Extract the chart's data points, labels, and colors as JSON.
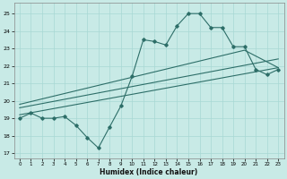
{
  "xlabel": "Humidex (Indice chaleur)",
  "bg_color": "#c8eae6",
  "grid_color": "#a8d8d4",
  "line_color": "#2d6e68",
  "x_ticks": [
    0,
    1,
    2,
    3,
    4,
    5,
    6,
    7,
    8,
    9,
    10,
    11,
    12,
    13,
    14,
    15,
    16,
    17,
    18,
    19,
    20,
    21,
    22,
    23
  ],
  "y_ticks": [
    17,
    18,
    19,
    20,
    21,
    22,
    23,
    24,
    25
  ],
  "xlim": [
    -0.5,
    23.5
  ],
  "ylim": [
    16.7,
    25.6
  ],
  "series1_x": [
    0,
    1,
    2,
    3,
    4,
    5,
    6,
    7,
    8,
    9,
    10,
    11,
    12,
    13,
    14,
    15,
    16,
    17,
    18,
    19,
    20,
    21,
    22,
    23
  ],
  "series1_y": [
    19.0,
    19.3,
    19.0,
    19.0,
    19.1,
    18.6,
    17.9,
    17.3,
    18.5,
    19.7,
    21.4,
    23.5,
    23.4,
    23.2,
    24.3,
    25.0,
    25.0,
    24.2,
    24.2,
    23.1,
    23.1,
    21.8,
    21.5,
    21.8
  ],
  "line2_x": [
    0,
    23
  ],
  "line2_y": [
    19.2,
    21.9
  ],
  "line3_x": [
    0,
    23
  ],
  "line3_y": [
    19.6,
    22.4
  ],
  "line4_x": [
    0,
    20,
    23
  ],
  "line4_y": [
    19.8,
    22.9,
    21.9
  ]
}
